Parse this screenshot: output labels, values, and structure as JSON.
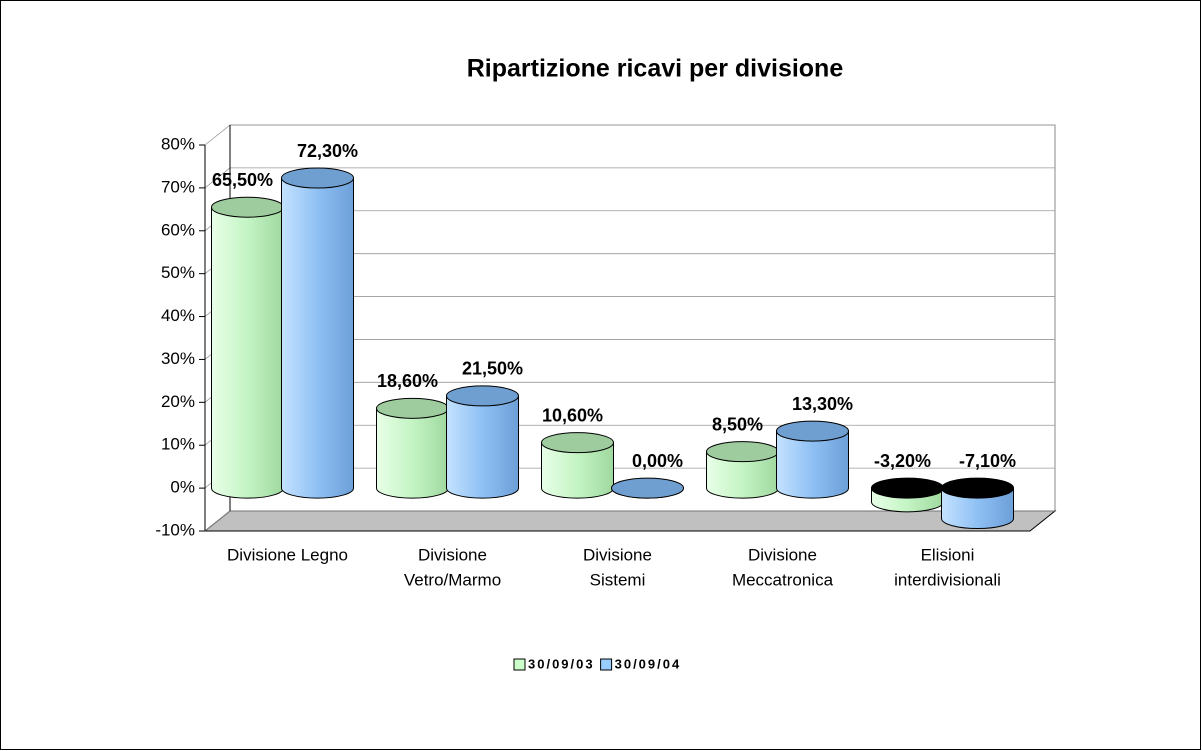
{
  "chart_data": {
    "type": "bar3d_cylinder",
    "title": "Ripartizione ricavi per divisione",
    "categories": [
      [
        "Divisione Legno"
      ],
      [
        "Divisione",
        "Vetro/Marmo"
      ],
      [
        "Divisione",
        "Sistemi"
      ],
      [
        "Divisione",
        "Meccatronica"
      ],
      [
        "Elisioni",
        "interdivisionali"
      ]
    ],
    "series": [
      {
        "name": "30/09/03",
        "color": "#ccffcc",
        "values": [
          65.5,
          18.6,
          10.6,
          8.5,
          -3.2
        ],
        "value_labels": [
          "65,50%",
          "18,60%",
          "10,60%",
          "8,50%",
          "-3,20%"
        ]
      },
      {
        "name": "30/09/04",
        "color": "#99ccff",
        "values": [
          72.3,
          21.5,
          0,
          13.3,
          -7.1
        ],
        "value_labels": [
          "72,30%",
          "21,50%",
          "0,00%",
          "13,30%",
          "-7,10%"
        ]
      }
    ],
    "ylim": [
      -10,
      80
    ],
    "yticks": [
      {
        "value": -10,
        "label": "-10%"
      },
      {
        "value": 0,
        "label": "0%"
      },
      {
        "value": 10,
        "label": "10%"
      },
      {
        "value": 20,
        "label": "20%"
      },
      {
        "value": 30,
        "label": "30%"
      },
      {
        "value": 40,
        "label": "40%"
      },
      {
        "value": 50,
        "label": "50%"
      },
      {
        "value": 60,
        "label": "60%"
      },
      {
        "value": 70,
        "label": "70%"
      },
      {
        "value": 80,
        "label": "80%"
      }
    ],
    "grid": true,
    "legend": "bottom"
  }
}
